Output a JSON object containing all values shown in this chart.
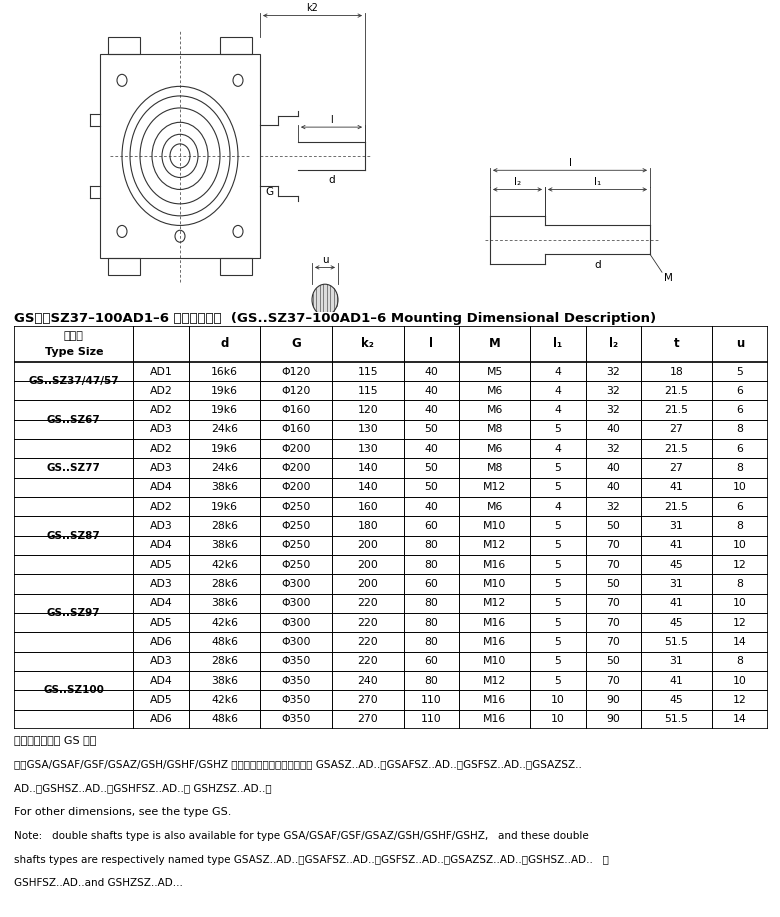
{
  "title_cn": "GS．．SZ37–100AD1–6 安装结构尺寸",
  "title_en": "(GS..SZ37–100AD1–6 Mounting Dimensional Description)",
  "rows": [
    [
      "GS..SZ37/47/57",
      "AD1",
      "16k6",
      "Φ120",
      "115",
      "40",
      "M5",
      "4",
      "32",
      "18",
      "5"
    ],
    [
      "",
      "AD2",
      "19k6",
      "Φ120",
      "115",
      "40",
      "M6",
      "4",
      "32",
      "21.5",
      "6"
    ],
    [
      "GS..SZ67",
      "AD2",
      "19k6",
      "Φ160",
      "120",
      "40",
      "M6",
      "4",
      "32",
      "21.5",
      "6"
    ],
    [
      "",
      "AD3",
      "24k6",
      "Φ160",
      "130",
      "50",
      "M8",
      "5",
      "40",
      "27",
      "8"
    ],
    [
      "GS..SZ77",
      "AD2",
      "19k6",
      "Φ200",
      "130",
      "40",
      "M6",
      "4",
      "32",
      "21.5",
      "6"
    ],
    [
      "",
      "AD3",
      "24k6",
      "Φ200",
      "140",
      "50",
      "M8",
      "5",
      "40",
      "27",
      "8"
    ],
    [
      "",
      "AD4",
      "38k6",
      "Φ200",
      "140",
      "50",
      "M12",
      "5",
      "40",
      "41",
      "10"
    ],
    [
      "GS..SZ87",
      "AD2",
      "19k6",
      "Φ250",
      "160",
      "40",
      "M6",
      "4",
      "32",
      "21.5",
      "6"
    ],
    [
      "",
      "AD3",
      "28k6",
      "Φ250",
      "180",
      "60",
      "M10",
      "5",
      "50",
      "31",
      "8"
    ],
    [
      "",
      "AD4",
      "38k6",
      "Φ250",
      "200",
      "80",
      "M12",
      "5",
      "70",
      "41",
      "10"
    ],
    [
      "",
      "AD5",
      "42k6",
      "Φ250",
      "200",
      "80",
      "M16",
      "5",
      "70",
      "45",
      "12"
    ],
    [
      "GS..SZ97",
      "AD3",
      "28k6",
      "Φ300",
      "200",
      "60",
      "M10",
      "5",
      "50",
      "31",
      "8"
    ],
    [
      "",
      "AD4",
      "38k6",
      "Φ300",
      "220",
      "80",
      "M12",
      "5",
      "70",
      "41",
      "10"
    ],
    [
      "",
      "AD5",
      "42k6",
      "Φ300",
      "220",
      "80",
      "M16",
      "5",
      "70",
      "45",
      "12"
    ],
    [
      "",
      "AD6",
      "48k6",
      "Φ300",
      "220",
      "80",
      "M16",
      "5",
      "70",
      "51.5",
      "14"
    ],
    [
      "GS..SZ100",
      "AD3",
      "28k6",
      "Φ350",
      "220",
      "60",
      "M10",
      "5",
      "50",
      "31",
      "8"
    ],
    [
      "",
      "AD4",
      "38k6",
      "Φ350",
      "240",
      "80",
      "M12",
      "5",
      "70",
      "41",
      "10"
    ],
    [
      "",
      "AD5",
      "42k6",
      "Φ350",
      "270",
      "110",
      "M16",
      "10",
      "90",
      "45",
      "12"
    ],
    [
      "",
      "AD6",
      "48k6",
      "Φ350",
      "270",
      "110",
      "M16",
      "10",
      "90",
      "51.5",
      "14"
    ]
  ],
  "group_info": [
    [
      "GS..SZ37/47/57",
      0,
      1
    ],
    [
      "GS..SZ67",
      2,
      3
    ],
    [
      "GS..SZ77",
      4,
      6
    ],
    [
      "GS..SZ87",
      7,
      10
    ],
    [
      "GS..SZ97",
      11,
      14
    ],
    [
      "GS..SZ100",
      15,
      18
    ]
  ],
  "note_cn1": "其它尺寸请参照 GS 型。",
  "note_cn2": "注：GSA/GSAF/GSF/GSAZ/GSH/GSHF/GSHZ 均可采用双轴型，并分别记为 GSASZ..AD..、GSAFSZ..AD..、GSFSZ..AD..、GSAZSZ..",
  "note_cn3": "AD..、GSHSZ..AD..、GSHFSZ..AD..和 GSHZSZ..AD..。",
  "note_en1": "For other dimensions, see the type GS.",
  "note_en2": "Note:   double shafts type is also available for type GSA/GSAF/GSF/GSAZ/GSH/GSHF/GSHZ,   and these double",
  "note_en3": "shafts types are respectively named type GSASZ..AD..、GSAFSZ..AD..、GSFSZ..AD..、GSAZSZ..AD..、GSHSZ..AD..   、",
  "note_en4": "GSHFSZ..AD..and GSHZSZ..AD..."
}
